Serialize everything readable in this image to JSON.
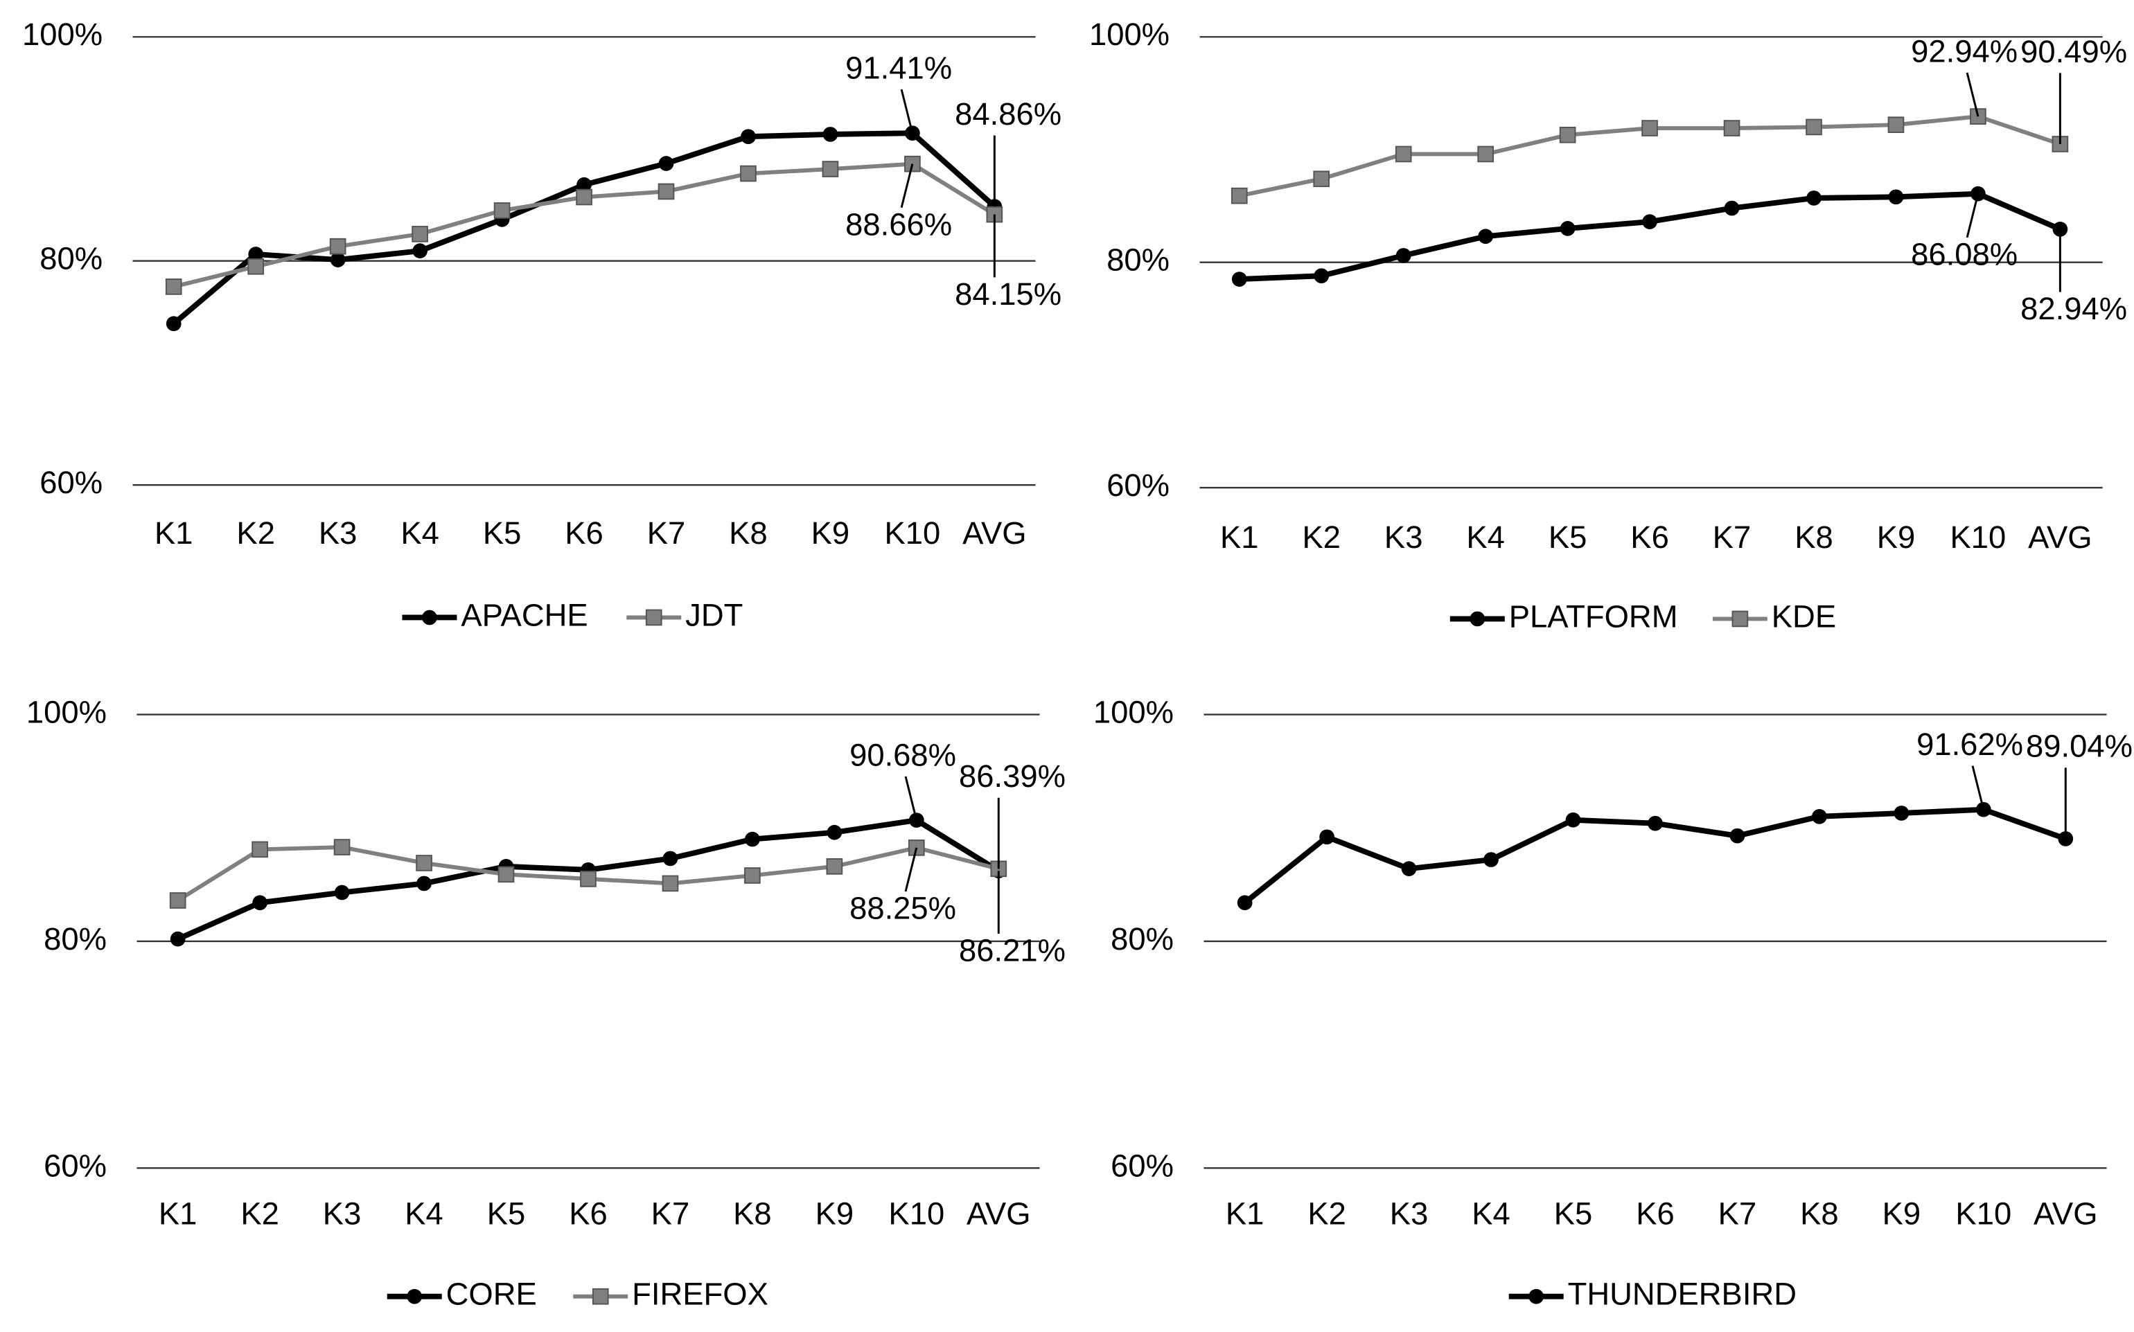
{
  "chart_data": [
    {
      "type": "line",
      "categories": [
        "K1",
        "K2",
        "K3",
        "K4",
        "K5",
        "K6",
        "K7",
        "K8",
        "K9",
        "K10",
        "AVG"
      ],
      "series": [
        {
          "name": "APACHE",
          "color": "#000000",
          "values": [
            74.4,
            80.6,
            80.1,
            80.9,
            83.7,
            86.8,
            88.7,
            91.1,
            91.3,
            91.41,
            84.86
          ],
          "value_labels": [
            null,
            null,
            null,
            null,
            null,
            null,
            null,
            null,
            null,
            "91.41%",
            "84.86%"
          ]
        },
        {
          "name": "JDT",
          "color": "#808080",
          "values": [
            77.7,
            79.5,
            81.3,
            82.4,
            84.5,
            85.7,
            86.2,
            87.8,
            88.2,
            88.66,
            84.15
          ],
          "value_labels": [
            null,
            null,
            null,
            null,
            null,
            null,
            null,
            null,
            null,
            "88.66%",
            "84.15%"
          ]
        }
      ],
      "ylim": [
        60,
        100
      ],
      "yticks": [
        {
          "value": 60,
          "label": "60%"
        },
        {
          "value": 80,
          "label": "80%"
        },
        {
          "value": 100,
          "label": "100%"
        }
      ],
      "grid": true
    },
    {
      "type": "line",
      "categories": [
        "K1",
        "K2",
        "K3",
        "K4",
        "K5",
        "K6",
        "K7",
        "K8",
        "K9",
        "K10",
        "AVG"
      ],
      "series": [
        {
          "name": "PLATFORM",
          "color": "#000000",
          "values": [
            78.5,
            78.8,
            80.6,
            82.3,
            83.0,
            83.6,
            84.8,
            85.7,
            85.8,
            86.08,
            82.94
          ],
          "value_labels": [
            null,
            null,
            null,
            null,
            null,
            null,
            null,
            null,
            null,
            "86.08%",
            "82.94%"
          ]
        },
        {
          "name": "KDE",
          "color": "#808080",
          "values": [
            85.9,
            87.4,
            89.6,
            89.6,
            91.3,
            91.9,
            91.9,
            92.0,
            92.2,
            92.94,
            90.49
          ],
          "value_labels": [
            null,
            null,
            null,
            null,
            null,
            null,
            null,
            null,
            null,
            "92.94%",
            "90.49%"
          ]
        }
      ],
      "ylim": [
        60,
        100
      ],
      "yticks": [
        {
          "value": 60,
          "label": "60%"
        },
        {
          "value": 80,
          "label": "80%"
        },
        {
          "value": 100,
          "label": "100%"
        }
      ],
      "grid": true
    },
    {
      "type": "line",
      "categories": [
        "K1",
        "K2",
        "K3",
        "K4",
        "K5",
        "K6",
        "K7",
        "K8",
        "K9",
        "K10",
        "AVG"
      ],
      "series": [
        {
          "name": "CORE",
          "color": "#000000",
          "values": [
            80.2,
            83.4,
            84.3,
            85.1,
            86.6,
            86.3,
            87.3,
            89.0,
            89.6,
            90.68,
            86.21
          ],
          "value_labels": [
            null,
            null,
            null,
            null,
            null,
            null,
            null,
            null,
            null,
            "90.68%",
            "86.21%"
          ]
        },
        {
          "name": "FIREFOX",
          "color": "#808080",
          "values": [
            83.6,
            88.1,
            88.3,
            86.9,
            85.9,
            85.5,
            85.1,
            85.8,
            86.6,
            88.25,
            86.39
          ],
          "value_labels": [
            null,
            null,
            null,
            null,
            null,
            null,
            null,
            null,
            null,
            "88.25%",
            "86.39%"
          ]
        }
      ],
      "ylim": [
        60,
        100
      ],
      "yticks": [
        {
          "value": 60,
          "label": "60%"
        },
        {
          "value": 80,
          "label": "80%"
        },
        {
          "value": 100,
          "label": "100%"
        }
      ],
      "grid": true
    },
    {
      "type": "line",
      "categories": [
        "K1",
        "K2",
        "K3",
        "K4",
        "K5",
        "K6",
        "K7",
        "K8",
        "K9",
        "K10",
        "AVG"
      ],
      "series": [
        {
          "name": "THUNDERBIRD",
          "color": "#000000",
          "values": [
            83.4,
            89.2,
            86.4,
            87.2,
            90.7,
            90.4,
            89.3,
            91.0,
            91.3,
            91.62,
            89.04
          ],
          "value_labels": [
            null,
            null,
            null,
            null,
            null,
            null,
            null,
            null,
            null,
            "91.62%",
            "89.04%"
          ]
        }
      ],
      "ylim": [
        60,
        100
      ],
      "yticks": [
        {
          "value": 60,
          "label": "60%"
        },
        {
          "value": 80,
          "label": "80%"
        },
        {
          "value": 100,
          "label": "100%"
        }
      ],
      "grid": true
    }
  ]
}
